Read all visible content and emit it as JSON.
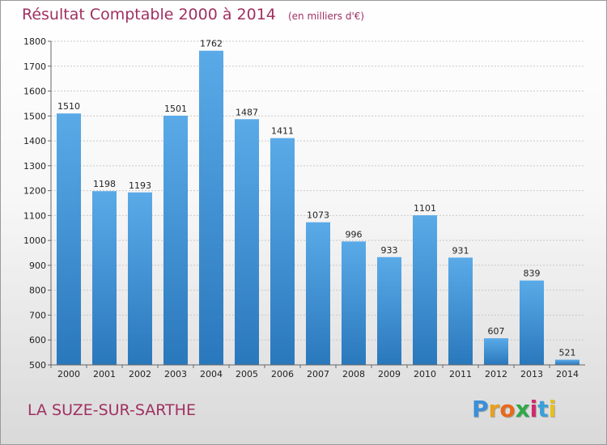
{
  "header": {
    "title": "Résultat Comptable 2000 à 2014",
    "unit": "(en milliers d'€)"
  },
  "footer": {
    "commune": "LA SUZE-SUR-SARTHE",
    "logo_letters": [
      "P",
      "r",
      "o",
      "x",
      "i",
      "t",
      "i"
    ],
    "logo_colors": [
      "#3a8fd8",
      "#e8a020",
      "#e86a1a",
      "#2fa84a",
      "#d02a6a",
      "#3aa0d8",
      "#e8c020"
    ]
  },
  "colors": {
    "bar_top": "#5aaae8",
    "bar_bottom": "#2a78bc",
    "title": "#a03060"
  },
  "chart_data": {
    "type": "bar",
    "title": "Résultat Comptable 2000 à 2014",
    "xlabel": "",
    "ylabel": "",
    "categories": [
      "2000",
      "2001",
      "2002",
      "2003",
      "2004",
      "2005",
      "2006",
      "2007",
      "2008",
      "2009",
      "2010",
      "2011",
      "2012",
      "2013",
      "2014"
    ],
    "values": [
      1510,
      1198,
      1193,
      1501,
      1762,
      1487,
      1411,
      1073,
      996,
      933,
      1101,
      931,
      607,
      839,
      521
    ],
    "ylim": [
      500,
      1800
    ],
    "yticks": [
      500,
      600,
      700,
      800,
      900,
      1000,
      1100,
      1200,
      1300,
      1400,
      1500,
      1600,
      1700,
      1800
    ],
    "grid": true,
    "legend": "none"
  }
}
